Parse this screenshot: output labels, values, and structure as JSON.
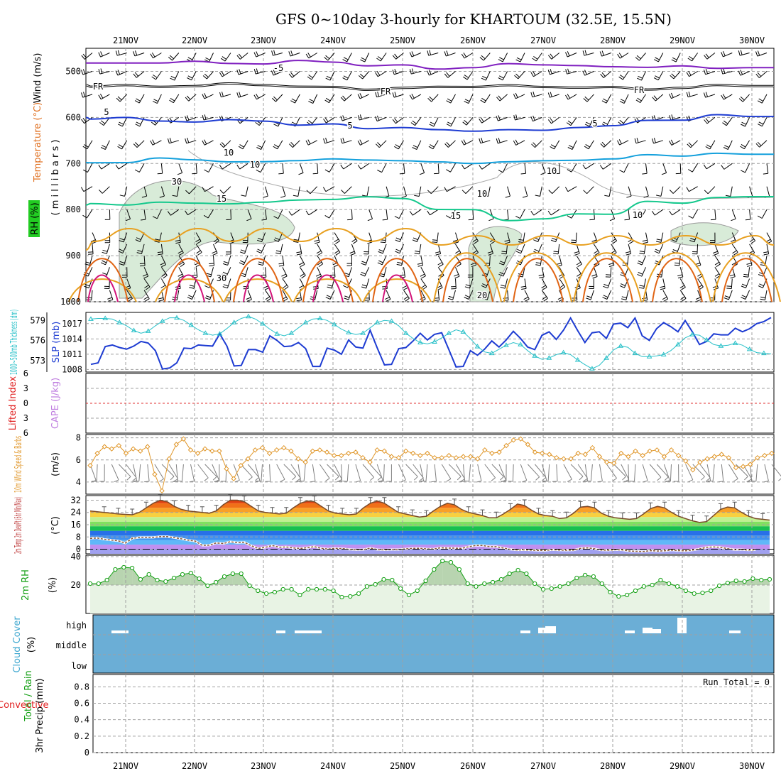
{
  "title": "GFS 0~10day 3-hourly for KHARTOUM (32.5E, 15.5N)",
  "dates": [
    "21NOV",
    "22NOV",
    "23NOV",
    "24NOV",
    "25NOV",
    "26NOV",
    "27NOV",
    "28NOV",
    "29NOV",
    "30NOV"
  ],
  "colors": {
    "grid": "#a0a0a0",
    "purple": "#8020c0",
    "black": "#000000",
    "blue": "#1e3cd2",
    "lightblue": "#14a0dc",
    "green": "#14c88c",
    "orange": "#e8a020",
    "darkorange": "#e06414",
    "magenta": "#d2147a",
    "cyan": "#28c0c8",
    "rh_fill": "#d8ebd8",
    "cloud": "#6baed6",
    "windspeed": "#e09628",
    "temp_line": "#7a4a28",
    "dew_line": "#8a5a3a",
    "rh2m": "#14a014"
  },
  "chart_data": [
    {
      "id": "upper-air",
      "type": "contour",
      "ylabel_wind": "Wind (m/s)",
      "ylabel_temp": "Temperature (°C)",
      "ylabel_rh": "RH (%)",
      "ylabel_mb": "( m i l l i b a r s )",
      "yticks": [
        500,
        600,
        700,
        800,
        900,
        1000
      ],
      "ylim": [
        450,
        1000
      ],
      "contour_labels": [
        {
          "text": "-5",
          "kind": "temp"
        },
        {
          "text": "FR",
          "kind": "temp"
        },
        {
          "text": "FR",
          "kind": "temp"
        },
        {
          "text": "FR",
          "kind": "temp"
        },
        {
          "text": "5",
          "kind": "temp"
        },
        {
          "text": "5",
          "kind": "temp"
        },
        {
          "text": "5",
          "kind": "temp"
        },
        {
          "text": "10",
          "kind": "temp"
        },
        {
          "text": "10",
          "kind": "temp"
        },
        {
          "text": "15",
          "kind": "temp"
        },
        {
          "text": "15",
          "kind": "temp"
        },
        {
          "text": "20",
          "kind": "temp"
        },
        {
          "text": "10",
          "kind": "rh"
        },
        {
          "text": "10",
          "kind": "rh"
        },
        {
          "text": "10",
          "kind": "rh"
        },
        {
          "text": "30",
          "kind": "rh"
        },
        {
          "text": "30",
          "kind": "rh"
        }
      ],
      "isotherms": [
        {
          "label": "-5",
          "day_values": [
            482,
            478,
            484,
            480,
            486,
            492,
            486,
            490,
            488,
            492
          ]
        },
        {
          "label": "0",
          "day_values": [
            530,
            532,
            530,
            534,
            536,
            534,
            534,
            534,
            536,
            532
          ]
        },
        {
          "label": "5",
          "day_values": [
            600,
            610,
            608,
            614,
            622,
            630,
            628,
            618,
            606,
            598
          ]
        },
        {
          "label": "10",
          "day_values": [
            698,
            692,
            696,
            690,
            694,
            700,
            694,
            690,
            684,
            680
          ]
        },
        {
          "label": "15",
          "day_values": [
            790,
            786,
            784,
            778,
            776,
            800,
            820,
            810,
            786,
            772
          ]
        }
      ]
    },
    {
      "id": "thickness-slp",
      "type": "line",
      "ylabel_left": "1000~500mb Thickness (dm)",
      "ylabel_right": "SLP (mb)",
      "yticks_left": [
        573,
        576,
        579
      ],
      "ylim_left": [
        571.3,
        580.2
      ],
      "yticks_right": [
        1008,
        1011,
        1014,
        1017
      ],
      "ylim_right": [
        1007.5,
        1019.2
      ],
      "series": [
        {
          "name": "SLP (mb)",
          "values": [
            1009,
            1009.3,
            1012.5,
            1012.8,
            1012.3,
            1012,
            1012.6,
            1013.5,
            1013.2,
            1011.7,
            1008.1,
            1008.3,
            1009.3,
            1012.2,
            1012.1,
            1012.8,
            1012.7,
            1012.6,
            1015,
            1012.6,
            1008.7,
            1008.8,
            1011.9,
            1011.9,
            1011.4,
            1014.6,
            1013.7,
            1012.5,
            1012.6,
            1013.3,
            1012.1,
            1008.6,
            1008.6,
            1012.2,
            1011.8,
            1011,
            1013.8,
            1012.4,
            1012.2,
            1015.7,
            1012.2,
            1008.9,
            1009,
            1012.1,
            1012.3,
            1013.6,
            1015.1,
            1013.8,
            1014.9,
            1015.2,
            1011.9,
            1008.5,
            1008.6,
            1011.7,
            1010.8,
            1012,
            1013.6,
            1012.4,
            1013.8,
            1015.5,
            1014.1,
            1012.4,
            1011.9,
            1014.7,
            1015.4,
            1013.9,
            1015.7,
            1018.1,
            1015.6,
            1013.3,
            1015.2,
            1015.4,
            1014.1,
            1016.9,
            1017.1,
            1016.2,
            1018.1,
            1014.6,
            1013.7,
            1016,
            1017.2,
            1016.4,
            1015.4,
            1017.6,
            1015.4,
            1012.9,
            1013.5,
            1015,
            1014.8,
            1014.8,
            1016.1,
            1015.4,
            1016,
            1017,
            1017.4,
            1018.2
          ]
        },
        {
          "name": "1000~500mb Thickness (dm)",
          "values": [
            579.2,
            579.3,
            579.3,
            579.2,
            578.7,
            578.2,
            577.5,
            577.1,
            577.4,
            578.2,
            578.9,
            579.4,
            579.4,
            579,
            578.3,
            577.6,
            577.1,
            576.8,
            577,
            577.8,
            578.7,
            579.3,
            579.6,
            579.2,
            578.5,
            577.7,
            577,
            576.7,
            577.1,
            577.9,
            578.7,
            579.2,
            579.3,
            579,
            578.4,
            577.7,
            577.2,
            576.9,
            577.1,
            577.9,
            578.7,
            579,
            578.9,
            578.2,
            577.1,
            576.3,
            575.7,
            575.5,
            575.8,
            576.4,
            577.1,
            577.6,
            577.3,
            576.3,
            575.1,
            574.3,
            574.1,
            574.7,
            575.3,
            575.7,
            575.4,
            574.5,
            573.7,
            573.2,
            573.4,
            573.9,
            574.2,
            573.9,
            573.1,
            572.4,
            571.8,
            572.3,
            573.4,
            574.6,
            575.2,
            575,
            574.1,
            573.6,
            573.6,
            573.7,
            573.9,
            574.5,
            575.4,
            576.4,
            576.9,
            576.8,
            576.1,
            575.4,
            575.2,
            575.3,
            575.6,
            575.3,
            574.7,
            574.2,
            574.1,
            574
          ]
        }
      ]
    },
    {
      "id": "li-cape",
      "type": "line",
      "ylabel_left": "Lifted Index",
      "ylabel_right": "CAPE (J/kg)",
      "yticks": [
        "6",
        "3",
        "0",
        "3",
        "6"
      ],
      "ylim": [
        -6,
        6
      ],
      "reference_line": 0
    },
    {
      "id": "wind10m",
      "type": "line",
      "ylabel_left": "10m Wind Speed & Barbs",
      "ylabel_unit": "(m/s)",
      "yticks": [
        4,
        6,
        8
      ],
      "ylim": [
        2.9,
        8.3
      ],
      "values": [
        5.5,
        6.6,
        7.2,
        7,
        7.3,
        6.6,
        7,
        6.8,
        7.2,
        4.7,
        3.2,
        6.1,
        7.4,
        7.9,
        6.9,
        6.6,
        7,
        6.8,
        6.8,
        5.2,
        4.3,
        5.5,
        6.1,
        6.9,
        7.1,
        6.6,
        6.9,
        7.1,
        6.8,
        6.1,
        5.8,
        6.8,
        6.9,
        6.7,
        6.4,
        6.4,
        6.6,
        6.7,
        6.2,
        5.8,
        6.9,
        6.8,
        6.3,
        6.2,
        6.8,
        6.6,
        6.4,
        6.6,
        6.2,
        6.2,
        6.4,
        6.2,
        6.3,
        6.3,
        6.1,
        6.9,
        6.6,
        6.7,
        7.3,
        7.8,
        7.9,
        7.4,
        6.7,
        6.6,
        6.5,
        6.2,
        6.1,
        6.1,
        6.6,
        6.5,
        7.1,
        6.3,
        5.8,
        5.7,
        6.6,
        6.3,
        6.8,
        6.4,
        6.8,
        6.9,
        6.3,
        6.9,
        6.4,
        5.9,
        5.1,
        5.8,
        6.1,
        6.3,
        6.5,
        6.2,
        5.3,
        5.4,
        5.6,
        6.2,
        6.4,
        6.6
      ]
    },
    {
      "id": "temp-dewpt",
      "type": "area",
      "ylabel_left": "2m Temp 2m DewPt (6hr Min/Max)",
      "ylabel_unit": "(°C)",
      "yticks": [
        0,
        8,
        16,
        24,
        32
      ],
      "ylim": [
        -3,
        35
      ],
      "series": [
        {
          "name": "2m Temp",
          "values": [
            25,
            24.5,
            24,
            23.5,
            23,
            22.7,
            22.5,
            24,
            27,
            30,
            32,
            31,
            28,
            26,
            25,
            24.5,
            24,
            23.5,
            25,
            29,
            32,
            32,
            31,
            28,
            25,
            24,
            23.5,
            23,
            23.5,
            27,
            30,
            31.5,
            31,
            28,
            25,
            23.5,
            23,
            22.5,
            23,
            27,
            30,
            31.5,
            30,
            27,
            24,
            23,
            22,
            21,
            21.5,
            25,
            28,
            30,
            29,
            26,
            24,
            23,
            22,
            20.5,
            20.5,
            23,
            26,
            29.5,
            28.5,
            25.5,
            23,
            22,
            21.5,
            20,
            20.5,
            23.5,
            27.5,
            28,
            27,
            23.5,
            21.5,
            20.5,
            20,
            19.5,
            20,
            23,
            26.5,
            28,
            27,
            24,
            21.5,
            20,
            18.5,
            17.5,
            18,
            22,
            26,
            27.5,
            27,
            24,
            21.5,
            20,
            19.5,
            19
          ]
        },
        {
          "name": "2m DewPt",
          "values": [
            7,
            7.3,
            6.5,
            6,
            5.5,
            4,
            7,
            7.7,
            7.7,
            7.7,
            8.2,
            8.2,
            7.5,
            6.8,
            5.9,
            5.3,
            2.5,
            2.6,
            4.1,
            3.7,
            4.9,
            4.3,
            4.5,
            2.3,
            0.5,
            1.2,
            2.4,
            1.3,
            1.5,
            0.8,
            0.5,
            1,
            1.7,
            0.5,
            0.1,
            0.5,
            0.4,
            -0.1,
            -0.3,
            -0.2,
            0.7,
            -0.2,
            -0.4,
            -0.2,
            -0.2,
            0.2,
            0.5,
            0.6,
            0.2,
            0.1,
            0.9,
            0.7,
            0.7,
            0.5,
            1.6,
            2.4,
            2.4,
            1.7,
            1.7,
            0.7,
            -0.1,
            -0.5,
            -0.4,
            -0.6,
            -0.8,
            -0.8,
            -0.3,
            -0.6,
            -0.7,
            -0.6,
            0.5,
            0.9,
            0.3,
            -0.6,
            -0.7,
            -0.3,
            -0.5,
            -1.2,
            -1.4,
            -1.5,
            -0.9,
            -1.2,
            -1,
            -0.6,
            -0.9,
            -1,
            -0.6,
            0.2,
            1.2,
            1.5,
            1.2,
            0.4,
            -0.3,
            -0.2,
            -0.6,
            -0.3
          ]
        }
      ]
    },
    {
      "id": "rh2m",
      "type": "area",
      "ylabel_left": "2m RH",
      "ylabel_unit": "(%)",
      "yticks": [
        20,
        40
      ],
      "ylim": [
        0,
        41
      ],
      "values": [
        21,
        21,
        23.5,
        31,
        32.5,
        32,
        24,
        27.5,
        23.5,
        22.5,
        25,
        27.5,
        28.5,
        24.5,
        19.5,
        22,
        26,
        28,
        28,
        19.5,
        16,
        14,
        15,
        17,
        17,
        13,
        17,
        17,
        17,
        16,
        11.5,
        12,
        14,
        19,
        20.5,
        24,
        23.5,
        17.5,
        13,
        16,
        23,
        31,
        37,
        36,
        31,
        21,
        19,
        21,
        22,
        24,
        28,
        30.5,
        28,
        21,
        17,
        17.5,
        19,
        21,
        25,
        27,
        26,
        21,
        15,
        12,
        13,
        16,
        19,
        20,
        23.5,
        21,
        19,
        16,
        14,
        14.5,
        16,
        19.5,
        21.5,
        23,
        22.5,
        24.5,
        23.5,
        24
      ]
    },
    {
      "id": "cloud-cover",
      "type": "heatmap",
      "ylabel_left": "Cloud Cover",
      "ylabel_unit": "(%)",
      "yticks": [
        "high",
        "middle",
        "low"
      ]
    },
    {
      "id": "precip",
      "type": "bar",
      "ylabel_left": "Total / Rain",
      "ylabel_left2": "Convective",
      "ylabel_unit": "3hr Precip (mm)",
      "yticks": [
        "0",
        "0.2",
        "0.4",
        "0.6",
        "0.8"
      ],
      "ylim": [
        0,
        0.95
      ],
      "run_total": "Run Total = 0",
      "values": []
    }
  ]
}
